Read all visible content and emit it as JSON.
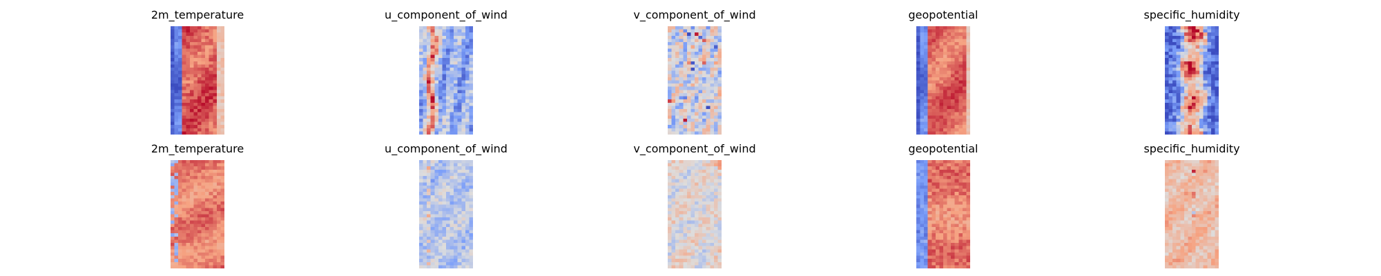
{
  "chart_data": {
    "type": "heatmap",
    "colormap": "coolwarm",
    "axes": "off",
    "rows": 2,
    "cols": 5,
    "panels": [
      {
        "row": 0,
        "col": 0,
        "title": "2m_temperature",
        "pattern": "warm_band",
        "band": [
          0.2,
          0.85
        ],
        "base": 0.12,
        "level": 0.86,
        "noise": 0.07,
        "edge_left": 0.04
      },
      {
        "row": 0,
        "col": 1,
        "title": "u_component_of_wind",
        "pattern": "streaks",
        "base": 0.32,
        "amp": 0.55,
        "noise": 0.14,
        "streak_x": 0.22
      },
      {
        "row": 0,
        "col": 2,
        "title": "v_component_of_wind",
        "pattern": "speckle",
        "base": 0.48,
        "amp": 0.45,
        "noise": 0.16
      },
      {
        "row": 0,
        "col": 3,
        "title": "geopotential",
        "pattern": "warm_band",
        "band": [
          0.22,
          0.92
        ],
        "base": 0.16,
        "level": 0.84,
        "noise": 0.06,
        "edge_left": 0.04
      },
      {
        "row": 0,
        "col": 4,
        "title": "specific_humidity",
        "pattern": "core",
        "band": [
          0.3,
          0.72
        ],
        "base": 0.06,
        "level": 0.86,
        "noise": 0.18
      },
      {
        "row": 1,
        "col": 0,
        "title": "2m_temperature",
        "pattern": "uniform",
        "base": 0.8,
        "noise": 0.06,
        "left_cool": 0.12
      },
      {
        "row": 1,
        "col": 1,
        "title": "u_component_of_wind",
        "pattern": "mild",
        "base": 0.4,
        "noise": 0.1,
        "hot_col": 0.18
      },
      {
        "row": 1,
        "col": 2,
        "title": "v_component_of_wind",
        "pattern": "mild",
        "base": 0.52,
        "noise": 0.1,
        "hot_col": 0.93
      },
      {
        "row": 1,
        "col": 3,
        "title": "geopotential",
        "pattern": "left_cool",
        "band": [
          0.22,
          1.0
        ],
        "base": 0.16,
        "level": 0.8,
        "noise": 0.07
      },
      {
        "row": 1,
        "col": 4,
        "title": "specific_humidity",
        "pattern": "mild",
        "base": 0.64,
        "noise": 0.09,
        "hot_col": 0.55
      }
    ]
  }
}
